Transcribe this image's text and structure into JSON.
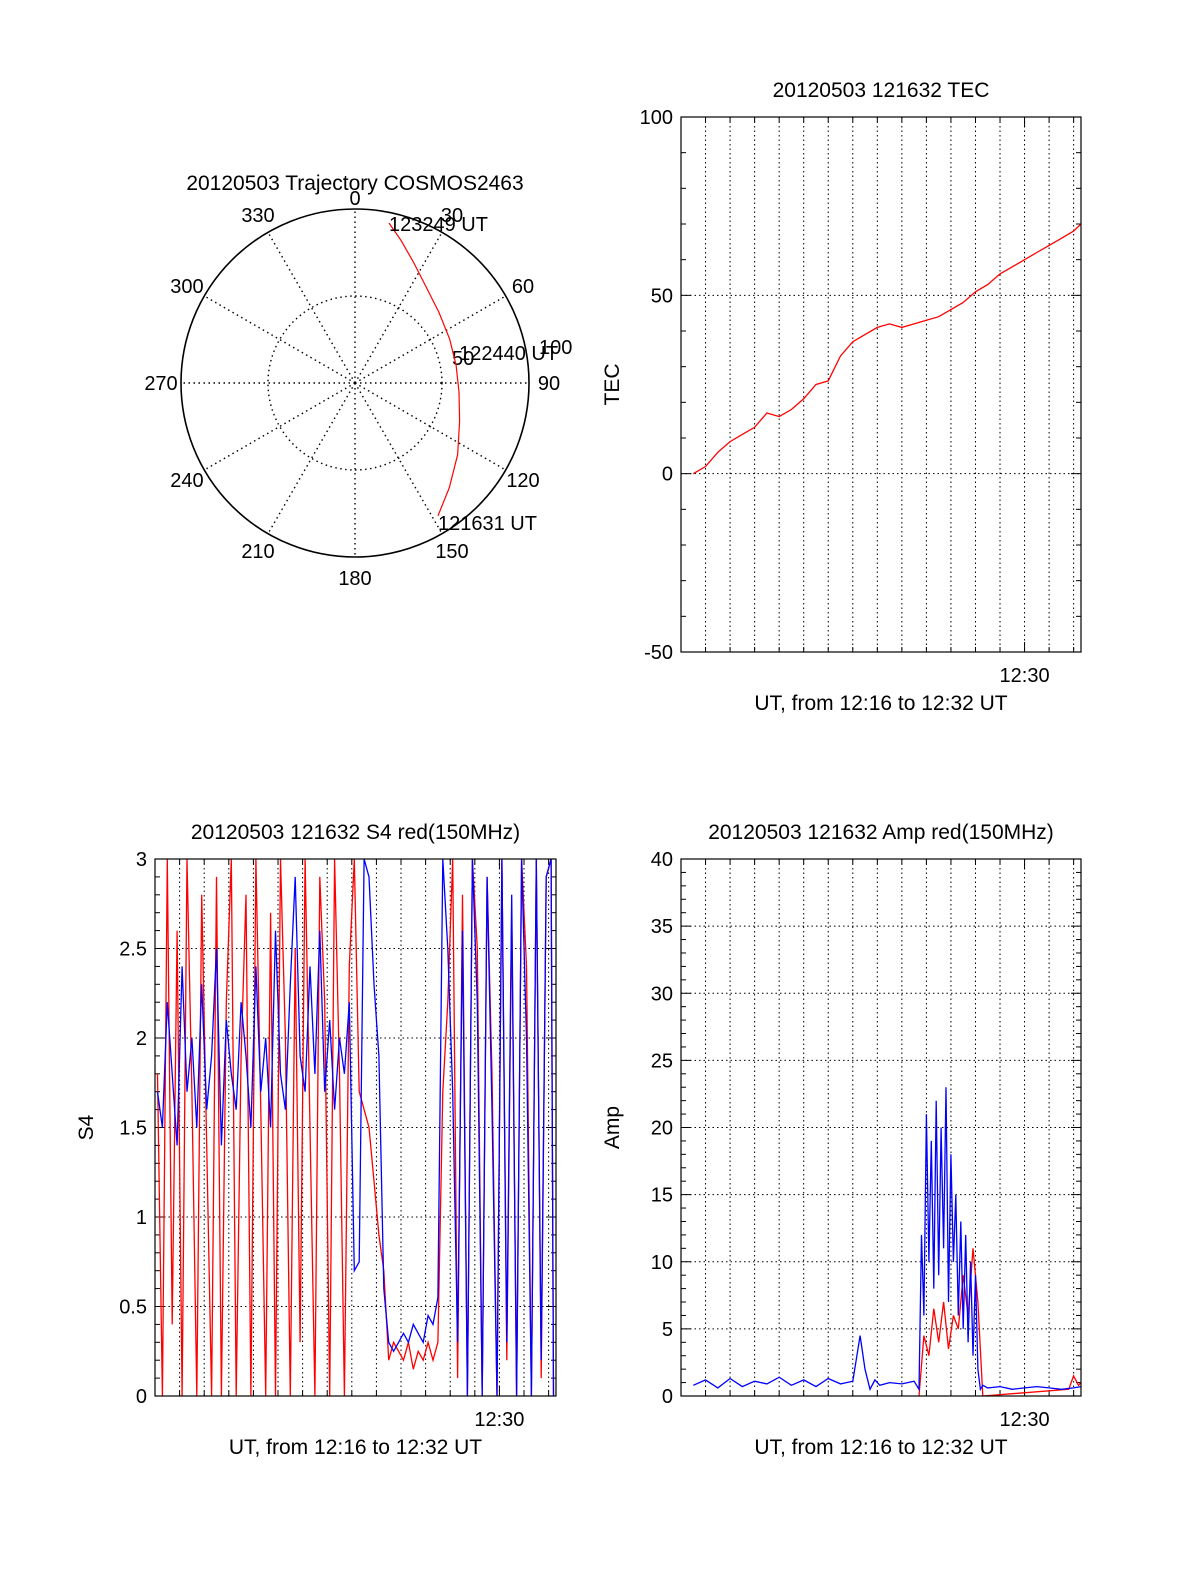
{
  "colors": {
    "red": "#ff0000",
    "blue": "#0000ff",
    "axis": "#000000"
  },
  "chart_data": [
    {
      "type": "polar",
      "title": "20120503 Trajectory COSMOS2463",
      "angle_labels": [
        "0",
        "30",
        "60",
        "90",
        "120",
        "150",
        "180",
        "210",
        "240",
        "270",
        "300",
        "330"
      ],
      "radius_labels": [
        "50",
        "100"
      ],
      "series": [
        {
          "color": "red",
          "points": [
            {
              "az": 12,
              "r": 94
            },
            {
              "az": 18,
              "r": 86
            },
            {
              "az": 26,
              "r": 77
            },
            {
              "az": 36,
              "r": 69
            },
            {
              "az": 50,
              "r": 63
            },
            {
              "az": 65,
              "r": 60
            },
            {
              "az": 80,
              "r": 59
            },
            {
              "az": 95,
              "r": 60
            },
            {
              "az": 110,
              "r": 64
            },
            {
              "az": 125,
              "r": 72
            },
            {
              "az": 138,
              "r": 81
            },
            {
              "az": 148,
              "r": 90
            }
          ]
        }
      ],
      "annotations": [
        {
          "text": "123249 UT",
          "az": 12,
          "r": 94
        },
        {
          "text": "122440 UT",
          "az": 80,
          "r": 59
        },
        {
          "text": "121631 UT",
          "az": 148,
          "r": 90
        }
      ]
    },
    {
      "type": "line",
      "title": "20120503 121632 TEC",
      "xlabel": "UT, from 12:16 to 12:32 UT",
      "ylabel": "TEC",
      "xlim": [
        0,
        16.3
      ],
      "ylim": [
        -50,
        100
      ],
      "yticks": [
        -50,
        0,
        50,
        100
      ],
      "xtick_labels": [
        {
          "x": 14,
          "text": "12:30"
        }
      ],
      "grid": true,
      "series": [
        {
          "color": "red",
          "x": [
            0.5,
            1,
            1.5,
            2,
            2.5,
            3,
            3.5,
            4,
            4.5,
            5,
            5.5,
            6,
            6.5,
            7,
            7.5,
            8,
            8.5,
            9,
            9.5,
            10,
            10.5,
            11,
            11.5,
            12,
            12.5,
            13,
            13.5,
            14,
            14.5,
            15,
            15.5,
            16,
            16.3
          ],
          "y": [
            0,
            2,
            6,
            9,
            11,
            13,
            17,
            16,
            18,
            21,
            25,
            26,
            33,
            37,
            39,
            41,
            42,
            41,
            42,
            43,
            44,
            46,
            48,
            51,
            53,
            56,
            58,
            60,
            62,
            64,
            66,
            68,
            70
          ]
        }
      ]
    },
    {
      "type": "line",
      "title": "20120503 121632 S4 red(150MHz)",
      "xlabel": "UT, from 12:16 to 12:32 UT",
      "ylabel": "S4",
      "xlim": [
        0,
        16.3
      ],
      "ylim": [
        0,
        3
      ],
      "yticks": [
        0,
        0.5,
        1,
        1.5,
        2,
        2.5,
        3
      ],
      "xtick_labels": [
        {
          "x": 14,
          "text": "12:30"
        }
      ],
      "grid": true,
      "series": [
        {
          "color": "red",
          "x": [
            0.1,
            0.3,
            0.5,
            0.7,
            0.9,
            1.1,
            1.3,
            1.5,
            1.7,
            1.9,
            2.1,
            2.3,
            2.5,
            2.7,
            2.9,
            3.1,
            3.3,
            3.5,
            3.7,
            3.9,
            4.1,
            4.3,
            4.5,
            4.7,
            4.9,
            5.1,
            5.3,
            5.5,
            5.7,
            5.9,
            6.1,
            6.3,
            6.5,
            6.7,
            6.9,
            7.1,
            7.3,
            7.5,
            7.7,
            7.9,
            8.1,
            8.3,
            8.5,
            8.7,
            8.9,
            9.1,
            9.3,
            9.5,
            9.7,
            9.9,
            10.1,
            10.3,
            10.5,
            10.7,
            10.9,
            11.1,
            11.3,
            11.5,
            11.7,
            11.9,
            12.1,
            12.3,
            12.5,
            12.7,
            12.9,
            13.1,
            13.3,
            13.5,
            13.7,
            13.9,
            14.1,
            14.3,
            14.5,
            14.7,
            14.9,
            15.1,
            15.3,
            15.5,
            15.7,
            15.9,
            16.1,
            16.2
          ],
          "y": [
            1.8,
            0,
            3,
            0.4,
            2.6,
            0,
            3,
            1.7,
            0,
            2.8,
            1.4,
            0,
            2.9,
            0,
            2.2,
            3,
            0,
            1.9,
            2.8,
            0,
            3,
            1.6,
            0,
            2.7,
            0,
            3,
            2,
            0,
            2.5,
            0.3,
            3,
            1.5,
            0,
            2.9,
            2.2,
            0,
            3,
            1.8,
            0,
            2.4,
            3,
            1.7,
            1.6,
            1.5,
            1.2,
            0.9,
            0.7,
            0.2,
            0.3,
            0.25,
            0.2,
            0.3,
            0.15,
            0.25,
            0.2,
            0.3,
            0.2,
            0.3,
            1.7,
            2.2,
            3,
            0.1,
            2.8,
            0,
            3,
            2.5,
            0,
            2.9,
            1.8,
            0,
            3,
            0.2,
            2.7,
            0,
            3,
            2.4,
            0,
            3,
            0.1,
            2.9,
            3,
            0
          ]
        },
        {
          "color": "blue",
          "x": [
            0.1,
            0.3,
            0.5,
            0.7,
            0.9,
            1.1,
            1.3,
            1.5,
            1.7,
            1.9,
            2.1,
            2.3,
            2.5,
            2.7,
            2.9,
            3.1,
            3.3,
            3.5,
            3.7,
            3.9,
            4.1,
            4.3,
            4.5,
            4.7,
            4.9,
            5.1,
            5.3,
            5.5,
            5.7,
            5.9,
            6.1,
            6.3,
            6.5,
            6.7,
            6.9,
            7.1,
            7.3,
            7.5,
            7.7,
            7.9,
            8.1,
            8.3,
            8.5,
            8.7,
            8.9,
            9.1,
            9.3,
            9.5,
            9.7,
            9.9,
            10.1,
            10.3,
            10.5,
            10.7,
            10.9,
            11.1,
            11.3,
            11.5,
            11.7,
            11.9,
            12.1,
            12.3,
            12.5,
            12.7,
            12.9,
            13.1,
            13.3,
            13.5,
            13.7,
            13.9,
            14.1,
            14.3,
            14.5,
            14.7,
            14.9,
            15.1,
            15.3,
            15.5,
            15.7,
            15.9,
            16.1,
            16.2
          ],
          "y": [
            1.7,
            1.5,
            2.2,
            1.8,
            1.4,
            2.4,
            1.7,
            2.0,
            1.5,
            2.3,
            1.6,
            1.9,
            2.5,
            1.4,
            2.1,
            1.8,
            1.6,
            2.2,
            1.9,
            1.5,
            2.4,
            1.7,
            2.0,
            1.5,
            2.6,
            1.8,
            1.6,
            2.3,
            2.9,
            1.9,
            1.7,
            2.4,
            1.8,
            2.6,
            1.7,
            2.1,
            1.6,
            2.0,
            1.8,
            2.2,
            0.7,
            0.75,
            3,
            2.9,
            2.3,
            1.9,
            0.6,
            0.3,
            0.25,
            0.3,
            0.35,
            0.3,
            0.4,
            0.35,
            0.3,
            0.45,
            0.4,
            0.55,
            3,
            2.5,
            1.7,
            0.3,
            2.6,
            0,
            3,
            2.2,
            0,
            2.9,
            1.6,
            0,
            3,
            0.3,
            2.8,
            0,
            3,
            2.0,
            0,
            3,
            0.2,
            2.9,
            3,
            0
          ]
        }
      ]
    },
    {
      "type": "line",
      "title": "20120503 121632 Amp red(150MHz)",
      "xlabel": "UT, from 12:16 to 12:32 UT",
      "ylabel": "Amp",
      "xlim": [
        0,
        16.3
      ],
      "ylim": [
        0,
        40
      ],
      "yticks": [
        0,
        5,
        10,
        15,
        20,
        25,
        30,
        35,
        40
      ],
      "xtick_labels": [
        {
          "x": 14,
          "text": "12:30"
        }
      ],
      "grid": true,
      "series": [
        {
          "color": "red",
          "x": [
            9.7,
            9.9,
            10.1,
            10.3,
            10.5,
            10.7,
            10.9,
            11.1,
            11.3,
            11.5,
            11.7,
            11.9,
            12.1,
            12.3,
            15.8,
            16.0,
            16.2,
            16.3
          ],
          "y": [
            0,
            4.5,
            3,
            6.5,
            4,
            7,
            3.5,
            6,
            5,
            9,
            6,
            11,
            7,
            0,
            0.5,
            1.5,
            0.8,
            1
          ]
        },
        {
          "color": "blue",
          "x": [
            0.5,
            1.0,
            1.5,
            2.0,
            2.5,
            3.0,
            3.5,
            4.0,
            4.5,
            5.0,
            5.5,
            6.0,
            6.5,
            7.0,
            7.3,
            7.5,
            7.7,
            7.9,
            8.1,
            8.5,
            9.0,
            9.5,
            9.7,
            9.8,
            9.9,
            10.0,
            10.1,
            10.2,
            10.3,
            10.4,
            10.5,
            10.6,
            10.7,
            10.8,
            10.9,
            11.0,
            11.1,
            11.2,
            11.3,
            11.4,
            11.5,
            11.6,
            11.7,
            11.8,
            11.9,
            12.0,
            12.1,
            12.2,
            12.3,
            12.5,
            13.0,
            13.5,
            14.0,
            14.5,
            15.0,
            15.5,
            16.0,
            16.3
          ],
          "y": [
            0.8,
            1.2,
            0.6,
            1.3,
            0.7,
            1.1,
            0.9,
            1.4,
            0.8,
            1.2,
            0.7,
            1.3,
            0.9,
            1.1,
            4.5,
            2,
            0.5,
            1.2,
            0.8,
            1.0,
            0.9,
            1.1,
            0.5,
            12,
            6,
            21,
            10,
            19,
            8,
            22,
            9,
            20,
            11,
            23,
            7,
            18,
            10,
            15,
            6,
            13,
            5,
            12,
            4,
            10,
            3,
            9,
            2,
            0.5,
            0.8,
            0.6,
            0.7,
            0.5,
            0.6,
            0.7,
            0.6,
            0.5,
            0.6,
            0.7
          ]
        }
      ]
    }
  ]
}
